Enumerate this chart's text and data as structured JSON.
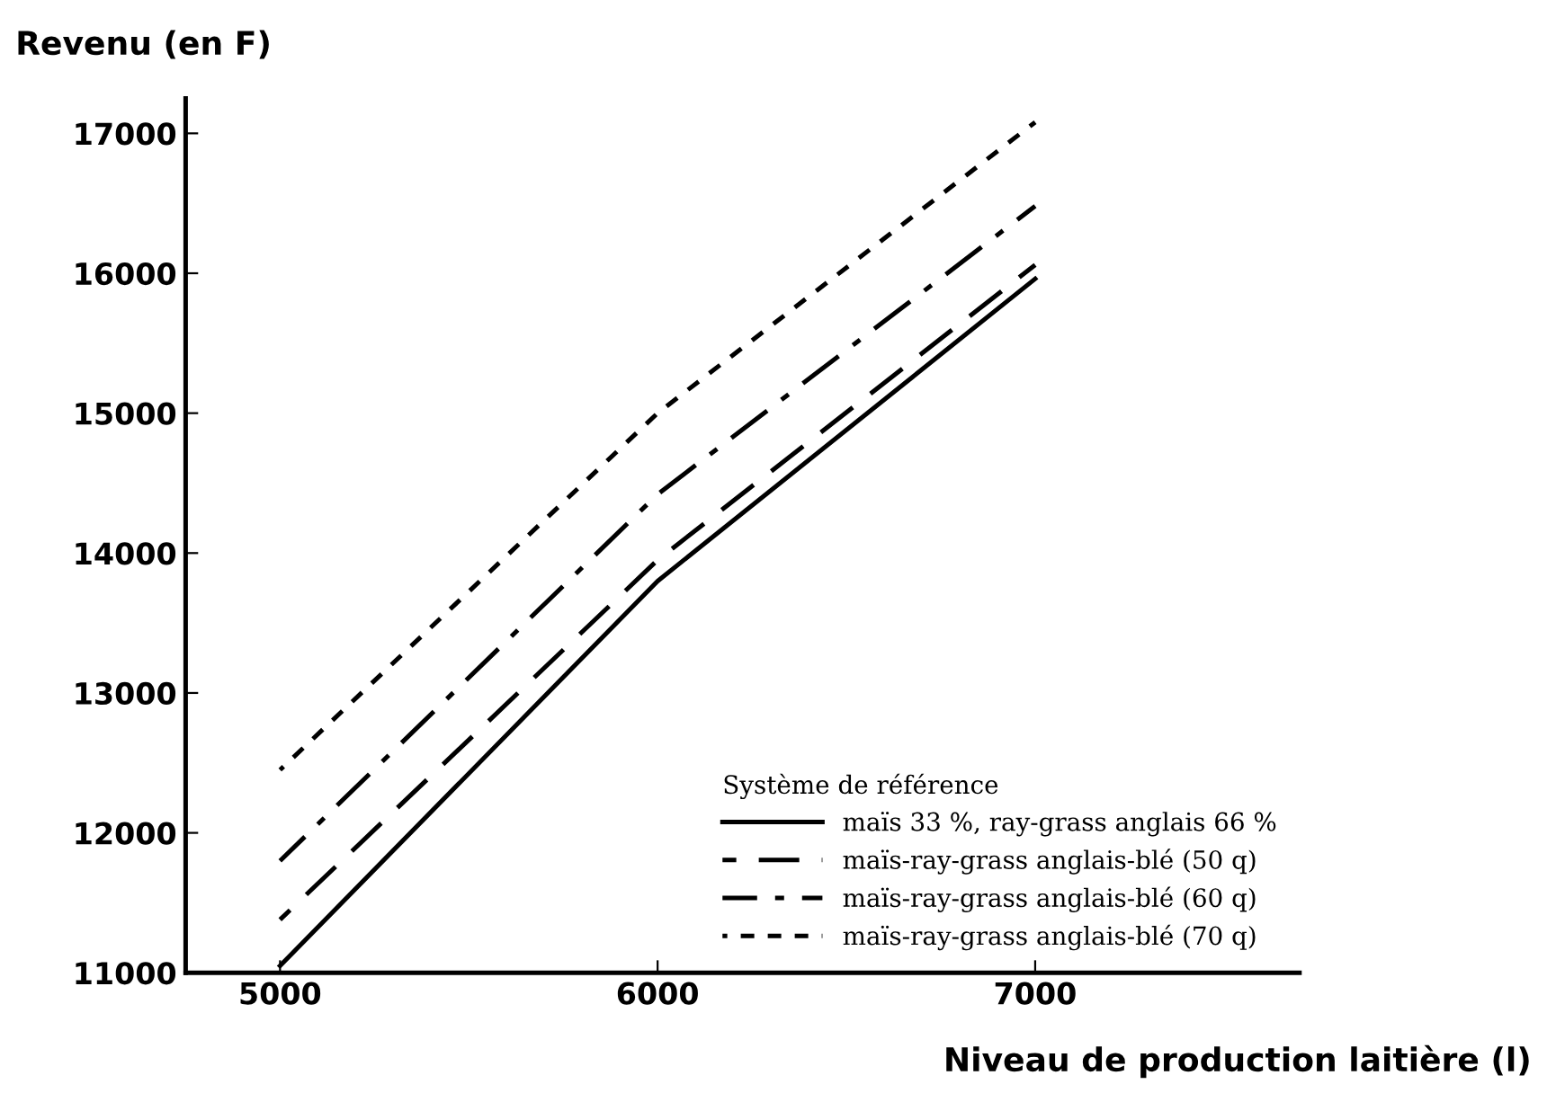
{
  "chart_data": {
    "type": "line",
    "xlabel": "Niveau de production laitière (l)",
    "ylabel": "Revenu (en F)",
    "legend_title": "Système de référence",
    "x": [
      5000,
      6000,
      7000
    ],
    "series": [
      {
        "name": "maïs 33 %, ray-grass anglais 66 %",
        "color": "#000000",
        "line_style": "solid",
        "values": [
          11050,
          13800,
          15960
        ]
      },
      {
        "name": "maïs-ray-grass anglais-blé (50 q)",
        "color": "#000000",
        "line_style": "dashed",
        "values": [
          11380,
          13950,
          16060
        ]
      },
      {
        "name": "maïs-ray-grass anglais-blé (60 q)",
        "color": "#000000",
        "line_style": "dashdot",
        "values": [
          11800,
          14420,
          16480
        ]
      },
      {
        "name": "maïs-ray-grass anglais-blé (70 q)",
        "color": "#000000",
        "line_style": "dotted",
        "values": [
          12450,
          15000,
          17080
        ]
      }
    ],
    "xlim": [
      4750,
      7700
    ],
    "ylim": [
      11000,
      17250
    ],
    "xticks": [
      5000,
      6000,
      7000
    ],
    "yticks": [
      11000,
      12000,
      13000,
      14000,
      15000,
      16000,
      17000
    ],
    "grid": false,
    "legend": "bottom right",
    "marker": "none"
  }
}
